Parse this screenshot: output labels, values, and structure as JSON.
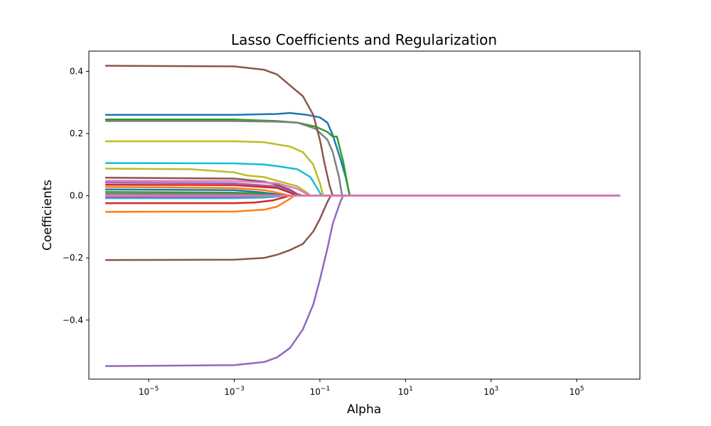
{
  "chart_data": {
    "type": "line",
    "title": "Lasso Coefficients and Regularization",
    "xlabel": "Alpha",
    "ylabel": "Coefficients",
    "xscale": "log",
    "xlim": [
      4e-07,
      3000000.0
    ],
    "ylim": [
      -0.59,
      0.465
    ],
    "grid": false,
    "x_ticks": [
      {
        "value": 1e-05,
        "base": "10",
        "exp": "−5"
      },
      {
        "value": 0.001,
        "base": "10",
        "exp": "−3"
      },
      {
        "value": 0.1,
        "base": "10",
        "exp": "−1"
      },
      {
        "value": 10.0,
        "base": "10",
        "exp": "1"
      },
      {
        "value": 1000.0,
        "base": "10",
        "exp": "3"
      },
      {
        "value": 100000.0,
        "base": "10",
        "exp": "5"
      }
    ],
    "y_ticks": [
      {
        "value": 0.4,
        "label": "0.4"
      },
      {
        "value": 0.2,
        "label": "0.2"
      },
      {
        "value": 0.0,
        "label": "0.0"
      },
      {
        "value": -0.2,
        "label": "−0.2"
      },
      {
        "value": -0.4,
        "label": "−0.4"
      }
    ],
    "series": [
      {
        "color": "#1f77b4",
        "points": [
          [
            1e-06,
            0.26
          ],
          [
            0.001,
            0.26
          ],
          [
            0.01,
            0.263
          ],
          [
            0.02,
            0.266
          ],
          [
            0.05,
            0.26
          ],
          [
            0.1,
            0.252
          ],
          [
            0.15,
            0.235
          ],
          [
            0.2,
            0.195
          ],
          [
            0.3,
            0.12
          ],
          [
            0.4,
            0.06
          ],
          [
            0.5,
            0.0
          ],
          [
            1000000.0,
            0.0
          ]
        ]
      },
      {
        "color": "#2ca02c",
        "points": [
          [
            1e-06,
            0.245
          ],
          [
            0.001,
            0.245
          ],
          [
            0.01,
            0.24
          ],
          [
            0.03,
            0.235
          ],
          [
            0.08,
            0.222
          ],
          [
            0.15,
            0.205
          ],
          [
            0.2,
            0.19
          ],
          [
            0.25,
            0.19
          ],
          [
            0.35,
            0.11
          ],
          [
            0.45,
            0.03
          ],
          [
            0.5,
            0.0
          ],
          [
            1000000.0,
            0.0
          ]
        ]
      },
      {
        "color": "#7f7f7f",
        "points": [
          [
            1e-06,
            0.24
          ],
          [
            0.001,
            0.24
          ],
          [
            0.01,
            0.238
          ],
          [
            0.03,
            0.235
          ],
          [
            0.08,
            0.215
          ],
          [
            0.15,
            0.18
          ],
          [
            0.2,
            0.14
          ],
          [
            0.28,
            0.06
          ],
          [
            0.33,
            0.0
          ],
          [
            1000000.0,
            0.0
          ]
        ]
      },
      {
        "color": "#8c564b",
        "points": [
          [
            1e-06,
            0.418
          ],
          [
            0.001,
            0.416
          ],
          [
            0.005,
            0.405
          ],
          [
            0.01,
            0.39
          ],
          [
            0.02,
            0.355
          ],
          [
            0.04,
            0.32
          ],
          [
            0.07,
            0.26
          ],
          [
            0.1,
            0.18
          ],
          [
            0.13,
            0.1
          ],
          [
            0.17,
            0.03
          ],
          [
            0.2,
            0.0
          ],
          [
            1000000.0,
            0.0
          ]
        ]
      },
      {
        "color": "#bcbd22",
        "points": [
          [
            1e-06,
            0.175
          ],
          [
            0.001,
            0.175
          ],
          [
            0.005,
            0.172
          ],
          [
            0.01,
            0.165
          ],
          [
            0.02,
            0.158
          ],
          [
            0.04,
            0.14
          ],
          [
            0.07,
            0.1
          ],
          [
            0.1,
            0.04
          ],
          [
            0.12,
            0.0
          ],
          [
            1000000.0,
            0.0
          ]
        ]
      },
      {
        "color": "#17becf",
        "points": [
          [
            1e-06,
            0.105
          ],
          [
            0.001,
            0.104
          ],
          [
            0.005,
            0.1
          ],
          [
            0.01,
            0.095
          ],
          [
            0.03,
            0.085
          ],
          [
            0.06,
            0.06
          ],
          [
            0.09,
            0.02
          ],
          [
            0.11,
            0.0
          ],
          [
            1000000.0,
            0.0
          ]
        ]
      },
      {
        "color": "#bcbd22",
        "points": [
          [
            1e-06,
            0.087
          ],
          [
            0.0001,
            0.085
          ],
          [
            0.001,
            0.075
          ],
          [
            0.002,
            0.065
          ],
          [
            0.005,
            0.06
          ],
          [
            0.01,
            0.048
          ],
          [
            0.03,
            0.03
          ],
          [
            0.05,
            0.01
          ],
          [
            0.06,
            0.0
          ],
          [
            1000000.0,
            0.0
          ]
        ]
      },
      {
        "color": "#8c564b",
        "points": [
          [
            1e-06,
            0.058
          ],
          [
            0.001,
            0.055
          ],
          [
            0.005,
            0.045
          ],
          [
            0.01,
            0.035
          ],
          [
            0.02,
            0.02
          ],
          [
            0.03,
            0.005
          ],
          [
            0.04,
            0.0
          ],
          [
            1000000.0,
            0.0
          ]
        ]
      },
      {
        "color": "#e377c2",
        "points": [
          [
            1e-06,
            0.048
          ],
          [
            0.001,
            0.047
          ],
          [
            0.01,
            0.04
          ],
          [
            0.03,
            0.022
          ],
          [
            0.05,
            0.005
          ],
          [
            0.06,
            0.0
          ],
          [
            1000000.0,
            0.0
          ]
        ]
      },
      {
        "color": "#9467bd",
        "points": [
          [
            1e-06,
            0.042
          ],
          [
            0.001,
            0.04
          ],
          [
            0.01,
            0.03
          ],
          [
            0.02,
            0.015
          ],
          [
            0.03,
            0.0
          ],
          [
            1000000.0,
            0.0
          ]
        ]
      },
      {
        "color": "#d62728",
        "points": [
          [
            1e-06,
            0.035
          ],
          [
            0.001,
            0.034
          ],
          [
            0.01,
            0.025
          ],
          [
            0.02,
            0.01
          ],
          [
            0.03,
            0.0
          ],
          [
            1000000.0,
            0.0
          ]
        ]
      },
      {
        "color": "#ff7f0e",
        "points": [
          [
            1e-06,
            0.028
          ],
          [
            0.001,
            0.025
          ],
          [
            0.005,
            0.018
          ],
          [
            0.01,
            0.01
          ],
          [
            0.02,
            0.0
          ],
          [
            1000000.0,
            0.0
          ]
        ]
      },
      {
        "color": "#1f77b4",
        "points": [
          [
            1e-06,
            0.02
          ],
          [
            0.001,
            0.018
          ],
          [
            0.005,
            0.01
          ],
          [
            0.01,
            0.004
          ],
          [
            0.015,
            0.0
          ],
          [
            1000000.0,
            0.0
          ]
        ]
      },
      {
        "color": "#2ca02c",
        "points": [
          [
            1e-06,
            0.012
          ],
          [
            0.001,
            0.01
          ],
          [
            0.005,
            0.006
          ],
          [
            0.01,
            0.0
          ],
          [
            1000000.0,
            0.0
          ]
        ]
      },
      {
        "color": "#7f7f7f",
        "points": [
          [
            1e-06,
            0.006
          ],
          [
            0.001,
            0.005
          ],
          [
            0.01,
            0.0
          ],
          [
            1000000.0,
            0.0
          ]
        ]
      },
      {
        "color": "#17becf",
        "points": [
          [
            1e-06,
            -0.008
          ],
          [
            0.001,
            -0.008
          ],
          [
            0.005,
            -0.006
          ],
          [
            0.01,
            -0.003
          ],
          [
            0.02,
            0.0
          ],
          [
            1000000.0,
            0.0
          ]
        ]
      },
      {
        "color": "#9467bd",
        "points": [
          [
            1e-06,
            -0.005
          ],
          [
            0.001,
            -0.004
          ],
          [
            0.008,
            0.0
          ],
          [
            1000000.0,
            0.0
          ]
        ]
      },
      {
        "color": "#d62728",
        "points": [
          [
            1e-06,
            -0.024
          ],
          [
            0.001,
            -0.024
          ],
          [
            0.003,
            -0.022
          ],
          [
            0.008,
            -0.015
          ],
          [
            0.015,
            -0.005
          ],
          [
            0.02,
            0.0
          ],
          [
            1000000.0,
            0.0
          ]
        ]
      },
      {
        "color": "#ff7f0e",
        "points": [
          [
            1e-06,
            -0.052
          ],
          [
            0.001,
            -0.051
          ],
          [
            0.005,
            -0.045
          ],
          [
            0.01,
            -0.035
          ],
          [
            0.015,
            -0.02
          ],
          [
            0.02,
            -0.01
          ],
          [
            0.025,
            0.0
          ],
          [
            1000000.0,
            0.0
          ]
        ]
      },
      {
        "color": "#8c564b",
        "points": [
          [
            1e-06,
            -0.207
          ],
          [
            0.001,
            -0.206
          ],
          [
            0.005,
            -0.2
          ],
          [
            0.01,
            -0.19
          ],
          [
            0.02,
            -0.175
          ],
          [
            0.04,
            -0.155
          ],
          [
            0.07,
            -0.115
          ],
          [
            0.1,
            -0.075
          ],
          [
            0.15,
            -0.02
          ],
          [
            0.18,
            0.0
          ],
          [
            1000000.0,
            0.0
          ]
        ]
      },
      {
        "color": "#9467bd",
        "points": [
          [
            1e-06,
            -0.548
          ],
          [
            0.001,
            -0.545
          ],
          [
            0.005,
            -0.535
          ],
          [
            0.01,
            -0.52
          ],
          [
            0.02,
            -0.49
          ],
          [
            0.04,
            -0.43
          ],
          [
            0.07,
            -0.35
          ],
          [
            0.1,
            -0.27
          ],
          [
            0.15,
            -0.17
          ],
          [
            0.2,
            -0.09
          ],
          [
            0.3,
            -0.02
          ],
          [
            0.35,
            0.0
          ],
          [
            1000000.0,
            0.0
          ]
        ]
      },
      {
        "color": "#e377c2",
        "points": [
          [
            1e-06,
            0.0
          ],
          [
            1000000.0,
            0.0
          ]
        ]
      }
    ]
  }
}
